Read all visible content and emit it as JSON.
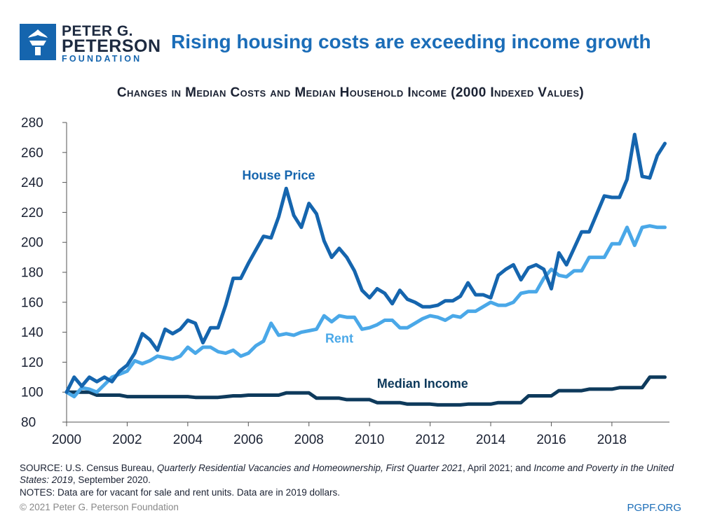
{
  "brand": {
    "line1": "PETER G.",
    "line2": "PETERSON",
    "line3": "FOUNDATION",
    "website": "PGPF.ORG",
    "copyright": "© 2021 Peter G. Peterson Foundation",
    "logo_icon": "torch-icon"
  },
  "colors": {
    "house": "#1565ae",
    "rent": "#4aa8e8",
    "income": "#0e3a5c",
    "headline": "#1b6db8",
    "axis": "#555555"
  },
  "footer": {
    "source_prefix": "SOURCE: U.S. Census Bureau, ",
    "source_title1": "Quarterly Residential Vacancies and Homeownership, First Quarter 2021",
    "source_mid": ", April 2021; and ",
    "source_title2": "Income and Poverty in the United States: 2019",
    "source_suffix": ", September 2020.",
    "notes": "NOTES: Data are for vacant for sale and rent units. Data are in 2019 dollars."
  },
  "chart_data": {
    "type": "line",
    "headline": "Rising housing costs are exceeding income growth",
    "title": "Changes in Median Costs and Median Household Income (2000 Indexed Values)",
    "xlabel": "",
    "ylabel": "",
    "xlim": [
      2000,
      2019.75
    ],
    "ylim": [
      80,
      280
    ],
    "xticks": [
      2000,
      2002,
      2004,
      2006,
      2008,
      2010,
      2012,
      2014,
      2016,
      2018
    ],
    "yticks": [
      80,
      100,
      120,
      140,
      160,
      180,
      200,
      220,
      240,
      260,
      280
    ],
    "grid": false,
    "x_start": 2000,
    "x_step": 0.25,
    "series": [
      {
        "name": "House Price",
        "key": "house",
        "values": [
          100,
          110,
          104,
          110,
          107,
          110,
          107,
          114,
          118,
          126,
          139,
          135,
          128,
          142,
          139,
          142,
          148,
          146,
          133,
          143,
          143,
          158,
          176,
          176,
          186,
          195,
          204,
          203,
          217,
          236,
          218,
          210,
          226,
          219,
          201,
          190,
          196,
          190,
          181,
          168,
          163,
          169,
          166,
          159,
          168,
          162,
          160,
          157,
          157,
          158,
          161,
          161,
          164,
          173,
          165,
          165,
          163,
          178,
          182,
          185,
          175,
          183,
          185,
          182,
          169,
          193,
          185,
          196,
          207,
          207,
          219,
          231,
          230,
          230,
          242,
          272,
          244,
          243,
          258,
          266
        ]
      },
      {
        "name": "Rent",
        "key": "rent",
        "values": [
          100,
          97,
          103,
          102,
          100,
          105,
          110,
          112,
          114,
          121,
          119,
          121,
          124,
          123,
          122,
          124,
          130,
          126,
          130,
          130,
          127,
          126,
          128,
          124,
          126,
          131,
          134,
          146,
          138,
          139,
          138,
          140,
          141,
          142,
          151,
          147,
          151,
          150,
          150,
          142,
          143,
          145,
          148,
          148,
          143,
          143,
          146,
          149,
          151,
          150,
          148,
          151,
          150,
          154,
          154,
          157,
          160,
          158,
          158,
          160,
          166,
          167,
          167,
          176,
          182,
          178,
          177,
          181,
          181,
          190,
          190,
          190,
          199,
          199,
          210,
          198,
          210,
          211,
          210,
          210
        ]
      },
      {
        "name": "Median Income",
        "key": "income",
        "values": [
          100,
          100,
          100,
          100,
          98,
          98,
          98,
          98,
          97,
          97,
          97,
          97,
          97,
          97,
          97,
          97,
          97,
          96.5,
          96.5,
          96.5,
          96.5,
          97,
          97.5,
          97.5,
          98,
          98,
          98,
          98,
          98,
          99.5,
          99.5,
          99.5,
          99.5,
          96,
          96,
          96,
          96,
          95,
          95,
          95,
          95,
          93,
          93,
          93,
          93,
          92,
          92,
          92,
          92,
          91.5,
          91.5,
          91.5,
          91.5,
          92,
          92,
          92,
          92,
          93,
          93,
          93,
          93,
          97.5,
          97.5,
          97.5,
          97.5,
          101,
          101,
          101,
          101,
          102,
          102,
          102,
          102,
          103,
          103,
          103,
          103,
          110,
          110,
          110
        ]
      }
    ],
    "annotations": [
      {
        "text": "House Price",
        "key": "house",
        "x": 2007.0,
        "y": 242
      },
      {
        "text": "Rent",
        "key": "rent",
        "x": 2009.0,
        "y": 133
      },
      {
        "text": "Median Income",
        "key": "income",
        "x": 2011.75,
        "y": 103
      }
    ]
  }
}
